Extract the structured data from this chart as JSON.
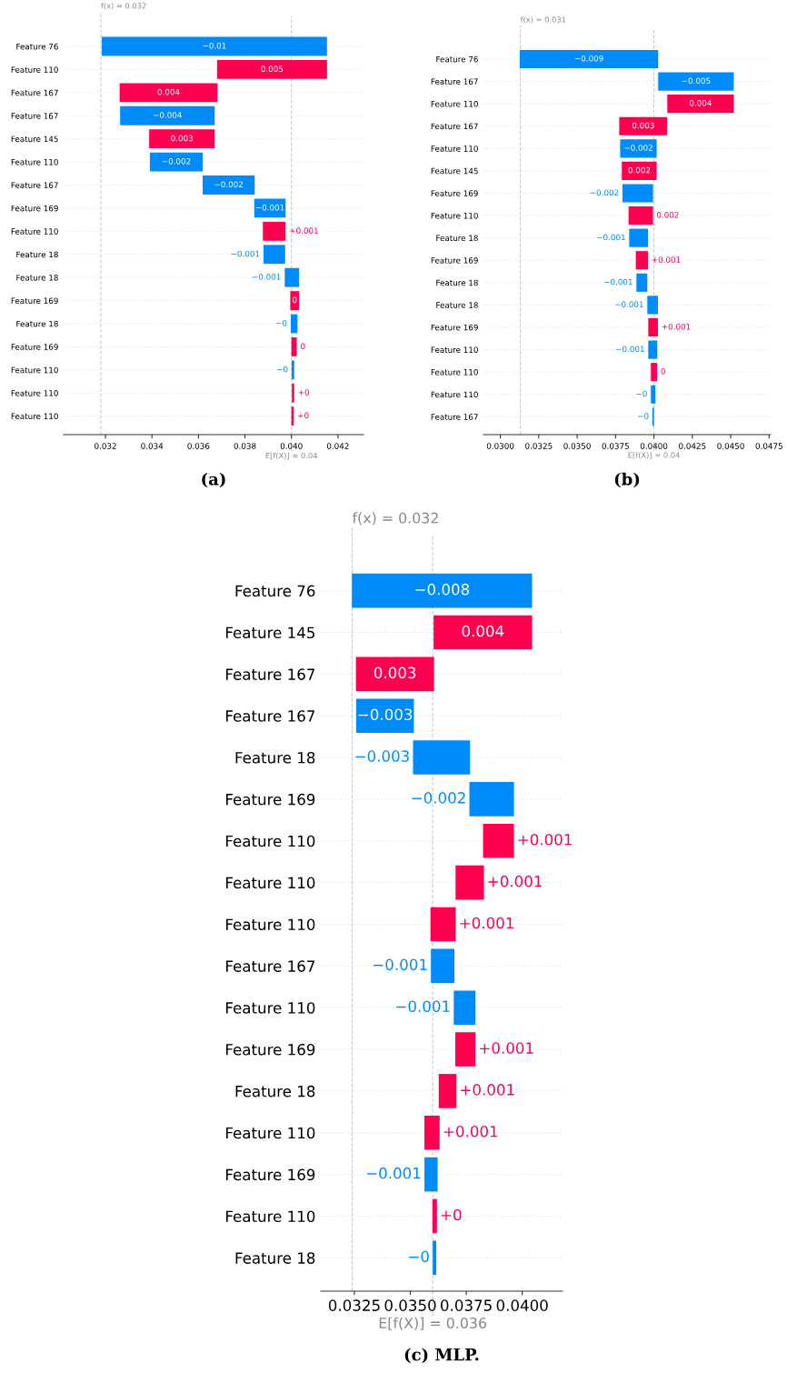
{
  "chart_data": [
    {
      "type": "bar",
      "orientation": "horizontal",
      "grid": "y",
      "categories": [
        "Feature 76",
        "Feature 110",
        "Feature 167",
        "Feature 167",
        "Feature 145",
        "Feature 110",
        "Feature 167",
        "Feature 169",
        "Feature 110",
        "Feature 18",
        "Feature 18",
        "Feature 169",
        "Feature 18",
        "Feature 169",
        "Feature 110",
        "Feature 110",
        "Feature 110"
      ],
      "base": [
        0.04153,
        0.0368,
        0.03261,
        0.0367,
        0.03388,
        0.03618,
        0.03842,
        0.03975,
        0.03877,
        0.03973,
        0.04033,
        0.03995,
        0.04026,
        0.04,
        0.04012,
        0.04002,
        0.04
      ],
      "values": [
        -0.00969,
        0.00473,
        0.00421,
        -0.00407,
        0.00282,
        -0.00227,
        -0.00224,
        -0.00135,
        0.00098,
        -0.00093,
        -0.00062,
        0.00038,
        -0.00029,
        0.00023,
        -0.00011,
        0.0001,
        0.0001
      ],
      "value_labels": [
        "−0.01",
        "0.005",
        "0.004",
        "−0.004",
        "0.003",
        "−0.002",
        "−0.002",
        "−0.001",
        "+0.001",
        "−0.001",
        "−0.001",
        "0",
        "−0",
        "0",
        "−0",
        "+0",
        "+0"
      ],
      "colors": [
        "#008bfb",
        "#ff0051",
        "#ff0051",
        "#008bfb",
        "#ff0051",
        "#008bfb",
        "#008bfb",
        "#008bfb",
        "#ff0051",
        "#008bfb",
        "#008bfb",
        "#ff0051",
        "#008bfb",
        "#ff0051",
        "#008bfb",
        "#ff0051",
        "#ff0051"
      ],
      "xlim": [
        0.0302,
        0.0431
      ],
      "xticks": [
        0.032,
        0.034,
        0.036,
        0.038,
        {
          "value": 0.04,
          "label": "0.040"
        },
        0.042
      ],
      "ref_lines": [
        {
          "axis": "x",
          "value": 0.0318,
          "label": "f(x) = 0.032",
          "color": "#cccccc",
          "line_style": "dashed"
        },
        {
          "axis": "x",
          "value": 0.04,
          "label": "E[f(X)] = 0.04",
          "color": "#cccccc",
          "line_style": "dashed"
        }
      ],
      "annotations": [
        "(a)"
      ]
    },
    {
      "type": "bar",
      "orientation": "horizontal",
      "grid": "y",
      "categories": [
        "Feature 76",
        "Feature 167",
        "Feature 110",
        "Feature 167",
        "Feature 110",
        "Feature 145",
        "Feature 169",
        "Feature 110",
        "Feature 18",
        "Feature 169",
        "Feature 18",
        "Feature 18",
        "Feature 169",
        "Feature 110",
        "Feature 110",
        "Feature 110",
        "Feature 167"
      ],
      "base": [
        0.04028,
        0.0452,
        0.04087,
        0.03774,
        0.04018,
        0.03791,
        0.03994,
        0.03835,
        0.03961,
        0.03882,
        0.03957,
        0.04026,
        0.03963,
        0.04022,
        0.0398,
        0.0401,
        0.04
      ],
      "values": [
        -0.00902,
        -0.00492,
        0.00433,
        0.00313,
        -0.00238,
        0.00227,
        -0.00199,
        0.00159,
        -0.00122,
        0.00079,
        -0.00071,
        -0.00069,
        0.00063,
        -0.00059,
        0.00041,
        -0.0003,
        -0.0001
      ],
      "value_labels": [
        "−0.009",
        "−0.005",
        "0.004",
        "0.003",
        "−0.002",
        "0.002",
        "−0.002",
        "0.002",
        "−0.001",
        "+0.001",
        "−0.001",
        "−0.001",
        "+0.001",
        "−0.001",
        "0",
        "−0",
        "−0"
      ],
      "colors": [
        "#008bfb",
        "#008bfb",
        "#ff0051",
        "#ff0051",
        "#008bfb",
        "#ff0051",
        "#008bfb",
        "#ff0051",
        "#008bfb",
        "#ff0051",
        "#008bfb",
        "#008bfb",
        "#ff0051",
        "#008bfb",
        "#ff0051",
        "#008bfb",
        "#008bfb"
      ],
      "xlim": [
        0.0289,
        0.0476
      ],
      "xticks": [
        {
          "value": 0.03,
          "label": "0.0300"
        },
        0.0325,
        {
          "value": 0.035,
          "label": "0.0350"
        },
        0.0375,
        {
          "value": 0.04,
          "label": "0.0400"
        },
        0.0425,
        {
          "value": 0.045,
          "label": "0.0450"
        },
        0.0475
      ],
      "ref_lines": [
        {
          "axis": "x",
          "value": 0.0313,
          "label": "f(x) = 0.031",
          "color": "#cccccc",
          "line_style": "dashed"
        },
        {
          "axis": "x",
          "value": 0.04,
          "label": "E[f(X)] = 0.04",
          "color": "#cccccc",
          "line_style": "dashed"
        }
      ],
      "annotations": [
        "(b)"
      ]
    },
    {
      "type": "bar",
      "orientation": "horizontal",
      "grid": "y",
      "categories": [
        "Feature 76",
        "Feature 145",
        "Feature 167",
        "Feature 167",
        "Feature 18",
        "Feature 169",
        "Feature 110",
        "Feature 110",
        "Feature 110",
        "Feature 167",
        "Feature 110",
        "Feature 169",
        "Feature 18",
        "Feature 110",
        "Feature 169",
        "Feature 110",
        "Feature 18"
      ],
      "base": [
        0.04044,
        0.03604,
        0.03257,
        0.03516,
        0.03767,
        0.03963,
        0.03825,
        0.03702,
        0.0359,
        0.03697,
        0.03791,
        0.03701,
        0.03627,
        0.03563,
        0.03622,
        0.03599,
        0.03616
      ],
      "values": [
        -0.00805,
        0.0044,
        0.00349,
        -0.00258,
        -0.00255,
        -0.00199,
        0.00138,
        0.00127,
        0.00113,
        -0.00105,
        -0.00097,
        0.0009,
        0.00079,
        0.00068,
        -0.00059,
        0.0002,
        -0.00016
      ],
      "value_labels": [
        "−0.008",
        "0.004",
        "0.003",
        "−0.003",
        "−0.003",
        "−0.002",
        "+0.001",
        "+0.001",
        "+0.001",
        "−0.001",
        "−0.001",
        "+0.001",
        "+0.001",
        "+0.001",
        "−0.001",
        "+0",
        "−0"
      ],
      "colors": [
        "#008bfb",
        "#ff0051",
        "#ff0051",
        "#008bfb",
        "#008bfb",
        "#008bfb",
        "#ff0051",
        "#ff0051",
        "#ff0051",
        "#008bfb",
        "#008bfb",
        "#ff0051",
        "#ff0051",
        "#ff0051",
        "#008bfb",
        "#ff0051",
        "#008bfb"
      ],
      "xlim": [
        0.031,
        0.0418
      ],
      "xticks": [
        0.0325,
        {
          "value": 0.035,
          "label": "0.0350"
        },
        0.0375,
        {
          "value": 0.04,
          "label": "0.0400"
        }
      ],
      "ref_lines": [
        {
          "axis": "x",
          "value": 0.0324,
          "label": "f(x) = 0.032",
          "color": "#cccccc",
          "line_style": "dashed"
        },
        {
          "axis": "x",
          "value": 0.036,
          "label": "E[f(X)] = 0.036",
          "color": "#cccccc",
          "line_style": "dashed"
        }
      ],
      "annotations": [
        "(c) MLP."
      ]
    }
  ]
}
